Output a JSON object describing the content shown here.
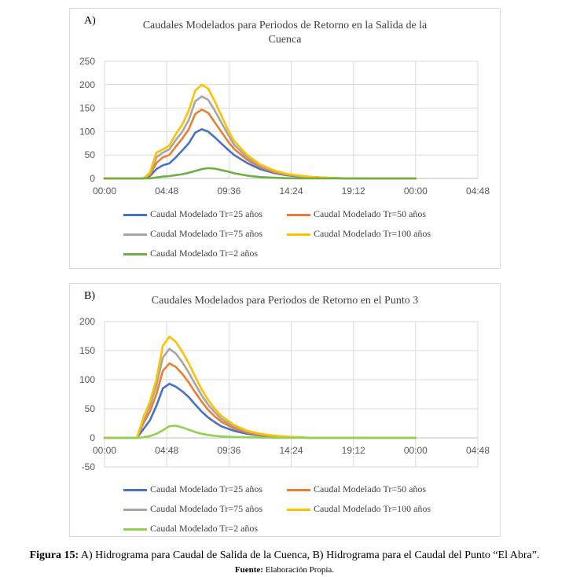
{
  "chart_data": [
    {
      "type": "line",
      "panel_label": "A)",
      "title": "Caudales Modelados para Periodos de Retorno en la Salida de la Cuenca",
      "title_lines": [
        "Caudales Modelados para Periodos de Retorno en la Salida de la",
        "Cuenca"
      ],
      "xlabel": "",
      "ylabel": "",
      "x_ticks": [
        "00:00",
        "04:48",
        "09:36",
        "14:24",
        "19:12",
        "00:00",
        "04:48"
      ],
      "x_range_hours": [
        0,
        28.8
      ],
      "y_ticks": [
        "0",
        "50",
        "100",
        "150",
        "200",
        "250"
      ],
      "ylim": [
        0,
        250
      ],
      "grid": true,
      "legend_position": "bottom",
      "x_hours": [
        0,
        1,
        2,
        3,
        3.5,
        4,
        4.5,
        5,
        5.5,
        6,
        6.5,
        7,
        7.5,
        8,
        8.5,
        9,
        9.5,
        10,
        11,
        12,
        13,
        14,
        15,
        16,
        17,
        18,
        19,
        20,
        21,
        22,
        23,
        24
      ],
      "series": [
        {
          "name": "Caudal Modelado Tr=25 años",
          "color": "#4472C4",
          "values": [
            0,
            0,
            0,
            0,
            5,
            20,
            28,
            32,
            45,
            60,
            75,
            98,
            105,
            100,
            88,
            75,
            62,
            50,
            33,
            20,
            12,
            7,
            4,
            2,
            1,
            0.5,
            0,
            0,
            0,
            0,
            0,
            0
          ]
        },
        {
          "name": "Caudal Modelado Tr=50 años",
          "color": "#ED7D31",
          "values": [
            0,
            0,
            0,
            0,
            8,
            33,
            45,
            50,
            68,
            85,
            105,
            138,
            147,
            140,
            120,
            100,
            80,
            63,
            40,
            24,
            14,
            8,
            5,
            3,
            1.5,
            0.5,
            0,
            0,
            0,
            0,
            0,
            0
          ]
        },
        {
          "name": "Caudal Modelado Tr=75 años",
          "color": "#A5A5A5",
          "values": [
            0,
            0,
            0,
            0,
            10,
            45,
            55,
            62,
            82,
            100,
            125,
            165,
            175,
            168,
            145,
            120,
            95,
            72,
            45,
            27,
            16,
            9,
            5,
            3,
            1.5,
            0.5,
            0,
            0,
            0,
            0,
            0,
            0
          ]
        },
        {
          "name": "Caudal Modelado Tr=100 años",
          "color": "#FFC000",
          "values": [
            0,
            0,
            0,
            0,
            12,
            55,
            62,
            70,
            95,
            115,
            145,
            188,
            200,
            192,
            165,
            135,
            105,
            80,
            50,
            30,
            18,
            10,
            6,
            3,
            1.5,
            0.5,
            0,
            0,
            0,
            0,
            0,
            0
          ]
        },
        {
          "name": "Caudal Modelado Tr=2 años",
          "color": "#70AD47",
          "values": [
            0,
            0,
            0,
            0,
            0,
            2,
            4,
            5,
            7,
            9,
            12,
            16,
            20,
            22,
            21,
            18,
            15,
            11,
            6,
            3,
            1.5,
            0.5,
            0,
            0,
            0,
            0,
            0,
            0,
            0,
            0,
            0,
            0
          ]
        }
      ]
    },
    {
      "type": "line",
      "panel_label": "B)",
      "title": "Caudales Modelados para Periodos de Retorno en el Punto 3",
      "title_lines": [
        "Caudales Modelados para Periodos de Retorno en el Punto 3"
      ],
      "xlabel": "",
      "ylabel": "",
      "x_ticks": [
        "00:00",
        "04:48",
        "09:36",
        "14:24",
        "19:12",
        "00:00",
        "04:48"
      ],
      "x_range_hours": [
        0,
        28.8
      ],
      "y_ticks": [
        "-50",
        "0",
        "50",
        "100",
        "150",
        "200"
      ],
      "ylim": [
        -50,
        200
      ],
      "grid": true,
      "legend_position": "bottom",
      "x_hours": [
        0,
        1,
        2,
        2.5,
        3,
        3.5,
        4,
        4.5,
        5,
        5.5,
        6,
        6.5,
        7,
        7.5,
        8,
        8.5,
        9,
        10,
        11,
        12,
        13,
        14,
        15,
        16,
        17,
        18,
        19,
        20,
        21,
        22,
        23,
        24
      ],
      "series": [
        {
          "name": "Caudal Modelado Tr=25 años",
          "color": "#4472C4",
          "values": [
            0,
            0,
            0,
            0,
            15,
            30,
            55,
            85,
            93,
            88,
            80,
            70,
            57,
            45,
            35,
            27,
            20,
            12,
            7,
            4,
            2,
            1,
            0.5,
            0,
            0,
            0,
            0,
            0,
            0,
            0,
            0,
            0
          ]
        },
        {
          "name": "Caudal Modelado Tr=50 años",
          "color": "#ED7D31",
          "values": [
            0,
            0,
            0,
            0,
            25,
            45,
            75,
            115,
            128,
            122,
            110,
            95,
            78,
            62,
            48,
            37,
            28,
            16,
            9,
            5,
            3,
            1.5,
            0.5,
            0,
            0,
            0,
            0,
            0,
            0,
            0,
            0,
            0
          ]
        },
        {
          "name": "Caudal Modelado Tr=75 años",
          "color": "#A5A5A5",
          "values": [
            0,
            0,
            0,
            0,
            30,
            55,
            90,
            138,
            153,
            145,
            130,
            112,
            92,
            73,
            57,
            44,
            33,
            19,
            11,
            6,
            3.5,
            2,
            1,
            0,
            0,
            0,
            0,
            0,
            0,
            0,
            0,
            0
          ]
        },
        {
          "name": "Caudal Modelado Tr=100 años",
          "color": "#FFC000",
          "values": [
            0,
            0,
            0,
            0,
            35,
            62,
            100,
            158,
            174,
            165,
            148,
            128,
            105,
            83,
            65,
            50,
            38,
            22,
            12,
            7,
            4,
            2,
            1,
            0,
            0,
            0,
            0,
            0,
            0,
            0,
            0,
            0
          ]
        },
        {
          "name": "Caudal Modelado Tr=2 años",
          "color": "#92D050",
          "values": [
            0,
            0,
            0,
            0,
            1,
            3,
            7,
            13,
            20,
            21,
            18,
            14,
            10,
            7,
            5,
            3.5,
            2.5,
            1.5,
            1,
            0.5,
            0,
            0,
            0,
            0,
            0,
            0,
            0,
            0,
            0,
            0,
            0,
            0
          ]
        }
      ]
    }
  ],
  "caption": {
    "label": "Figura 15:",
    "text": " A) Hidrograma para Caudal de Salida de la Cuenca, B) Hidrograma para el Caudal del Punto “El Abra”."
  },
  "source": {
    "label": "Fuente:",
    "text": " Elaboración Propia."
  }
}
